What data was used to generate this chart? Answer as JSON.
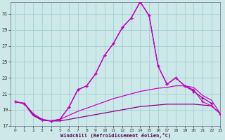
{
  "x_values": [
    0,
    1,
    2,
    3,
    4,
    5,
    6,
    7,
    8,
    9,
    10,
    11,
    12,
    13,
    14,
    15,
    16,
    17,
    18,
    19,
    20,
    21,
    22,
    23
  ],
  "series_peaked1": [
    20.0,
    19.8,
    18.5,
    17.8,
    17.6,
    17.8,
    19.3,
    21.5,
    22.0,
    23.5,
    25.8,
    27.3,
    29.3,
    30.5,
    32.5,
    30.8,
    24.5,
    22.2,
    23.0,
    22.0,
    21.3,
    20.5,
    19.8,
    null
  ],
  "series_peaked2": [
    20.0,
    19.8,
    18.5,
    17.8,
    17.6,
    17.8,
    19.3,
    21.5,
    22.0,
    23.5,
    25.8,
    27.3,
    29.3,
    30.5,
    32.5,
    30.8,
    24.5,
    22.2,
    23.0,
    22.0,
    21.5,
    20.0,
    19.5,
    18.5
  ],
  "series_flat1": [
    20.0,
    19.8,
    18.3,
    17.7,
    17.6,
    17.8,
    18.3,
    18.8,
    19.2,
    19.6,
    20.0,
    20.4,
    20.7,
    21.0,
    21.3,
    21.5,
    21.7,
    21.8,
    22.0,
    22.0,
    21.8,
    20.8,
    20.2,
    18.5
  ],
  "series_flat2": [
    20.0,
    19.8,
    18.3,
    17.7,
    17.6,
    17.6,
    17.8,
    18.0,
    18.2,
    18.4,
    18.6,
    18.8,
    19.0,
    19.2,
    19.4,
    19.5,
    19.6,
    19.7,
    19.7,
    19.7,
    19.7,
    19.6,
    19.5,
    18.5
  ],
  "line_color_dark": "#880088",
  "line_color_bright": "#cc00cc",
  "bg_color": "#cce8e8",
  "grid_color": "#99cccc",
  "xlabel": "Windchill (Refroidissement éolien,°C)",
  "ylim": [
    17,
    32.5
  ],
  "xlim": [
    -0.5,
    23
  ],
  "yticks": [
    17,
    19,
    21,
    23,
    25,
    27,
    29,
    31
  ],
  "xticks": [
    0,
    1,
    2,
    3,
    4,
    5,
    6,
    7,
    8,
    9,
    10,
    11,
    12,
    13,
    14,
    15,
    16,
    17,
    18,
    19,
    20,
    21,
    22,
    23
  ]
}
